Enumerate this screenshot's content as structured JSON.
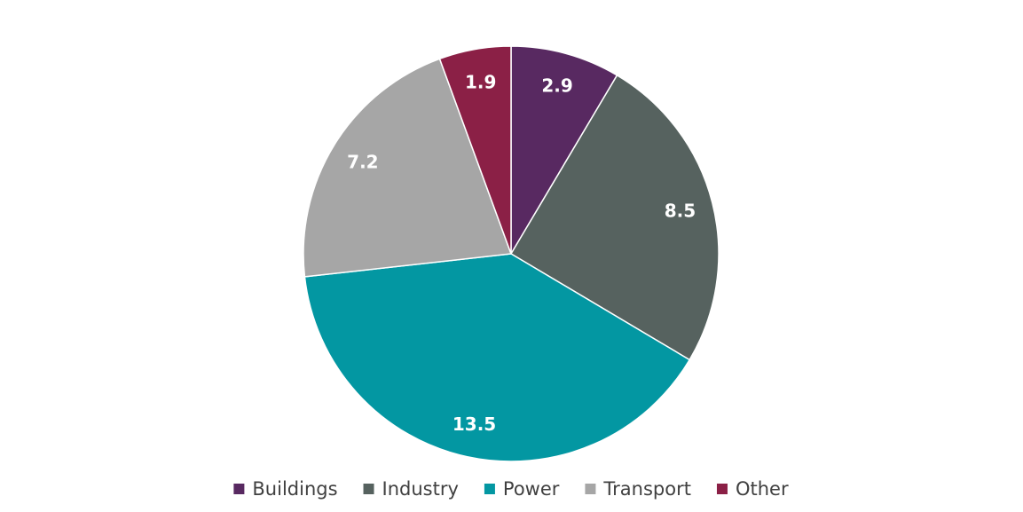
{
  "chart_data": {
    "type": "pie",
    "categories": [
      "Buildings",
      "Industry",
      "Power",
      "Transport",
      "Other"
    ],
    "values": [
      2.9,
      8.5,
      13.5,
      7.2,
      1.9
    ],
    "data_labels": [
      "2.9",
      "8.5",
      "13.5",
      "7.2",
      "1.9"
    ],
    "colors": [
      "#582961",
      "#56625F",
      "#0397A2",
      "#A6A6A6",
      "#8B2046"
    ],
    "start_angle": "12 o'clock",
    "direction": "clockwise",
    "legend": {
      "position": "bottom",
      "entries": [
        "Buildings",
        "Industry",
        "Power",
        "Transport",
        "Other"
      ]
    }
  }
}
